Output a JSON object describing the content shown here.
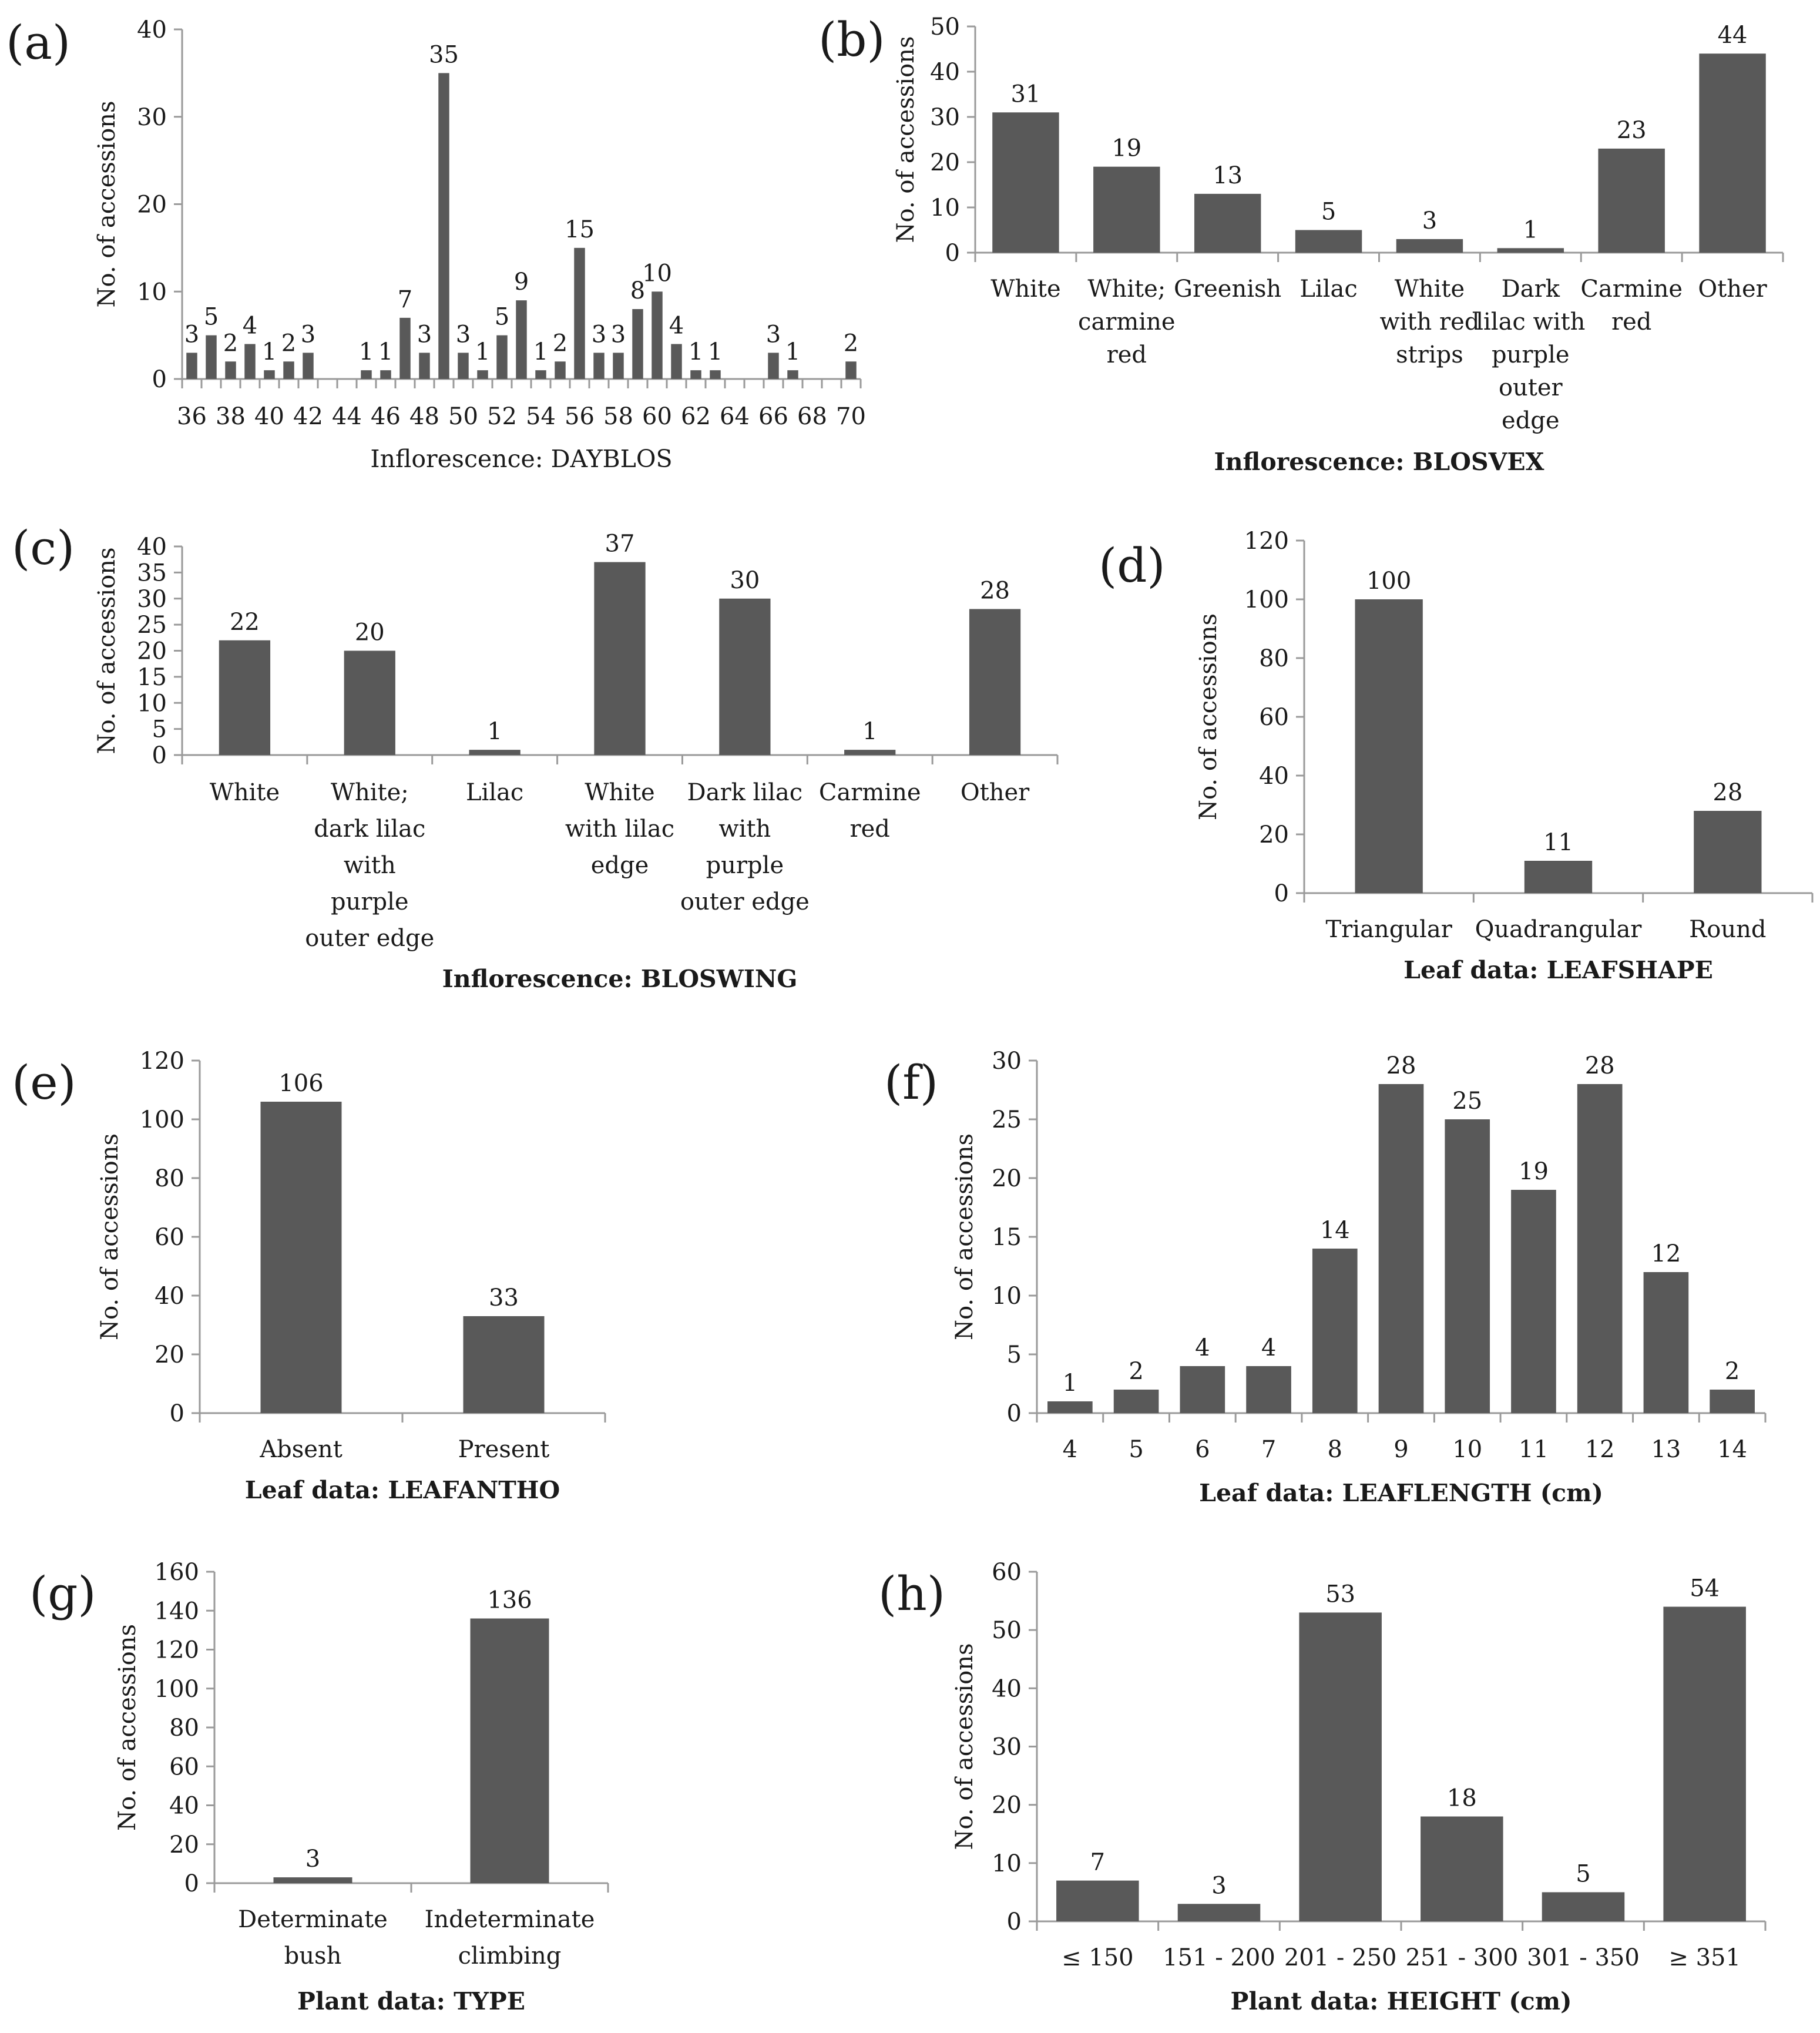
{
  "style": {
    "bar_color": "#595959",
    "axis_color": "#9a9a9a",
    "text_color": "#1a1a1a"
  },
  "chart_data": [
    {
      "id": "a",
      "panel_label": "(a)",
      "type": "bar",
      "title": "",
      "xlabel": "Inflorescence: DAYBLOS",
      "xlabel_bold": false,
      "ylabel": "No. of accessions",
      "ylim": [
        0,
        40
      ],
      "yticks": [
        0,
        10,
        20,
        30,
        40
      ],
      "categories": [
        "36",
        "37",
        "38",
        "39",
        "40",
        "41",
        "42",
        "43",
        "44",
        "45",
        "46",
        "47",
        "48",
        "49",
        "50",
        "51",
        "52",
        "53",
        "54",
        "55",
        "56",
        "57",
        "58",
        "59",
        "60",
        "61",
        "62",
        "63",
        "64",
        "65",
        "66",
        "67",
        "68",
        "69",
        "70"
      ],
      "category_labels": [
        [
          "36"
        ],
        [
          ""
        ],
        [
          "38"
        ],
        [
          ""
        ],
        [
          "40"
        ],
        [
          ""
        ],
        [
          "42"
        ],
        [
          ""
        ],
        [
          "44"
        ],
        [
          ""
        ],
        [
          "46"
        ],
        [
          ""
        ],
        [
          "48"
        ],
        [
          ""
        ],
        [
          "50"
        ],
        [
          ""
        ],
        [
          "52"
        ],
        [
          ""
        ],
        [
          "54"
        ],
        [
          ""
        ],
        [
          "56"
        ],
        [
          ""
        ],
        [
          "58"
        ],
        [
          ""
        ],
        [
          "60"
        ],
        [
          ""
        ],
        [
          "62"
        ],
        [
          ""
        ],
        [
          "64"
        ],
        [
          ""
        ],
        [
          "66"
        ],
        [
          ""
        ],
        [
          "68"
        ],
        [
          ""
        ],
        [
          "70"
        ]
      ],
      "values": [
        3,
        5,
        2,
        4,
        1,
        2,
        3,
        null,
        null,
        1,
        1,
        7,
        3,
        35,
        3,
        1,
        5,
        9,
        1,
        2,
        15,
        3,
        3,
        8,
        10,
        4,
        1,
        1,
        null,
        null,
        3,
        1,
        null,
        null,
        2
      ],
      "grid": false
    },
    {
      "id": "b",
      "panel_label": "(b)",
      "type": "bar",
      "title": "",
      "xlabel": "Inflorescence: BLOSVEX",
      "xlabel_bold": true,
      "ylabel": "No. of accessions",
      "ylim": [
        0,
        50
      ],
      "yticks": [
        0,
        10,
        20,
        30,
        40,
        50
      ],
      "categories": [
        "White",
        "White; carmine red",
        "Greenish",
        "Lilac",
        "White with red strips",
        "Dark lilac with purple outer edge",
        "Carmine red",
        "Other"
      ],
      "category_labels": [
        [
          "White"
        ],
        [
          "White;",
          "carmine",
          "red"
        ],
        [
          "Greenish"
        ],
        [
          "Lilac"
        ],
        [
          "White",
          "with red",
          "strips"
        ],
        [
          "Dark",
          "lilac with",
          "purple",
          "outer",
          "edge"
        ],
        [
          "Carmine",
          "red"
        ],
        [
          "Other"
        ]
      ],
      "values": [
        31,
        19,
        13,
        5,
        3,
        1,
        23,
        44
      ],
      "grid": false
    },
    {
      "id": "c",
      "panel_label": "(c)",
      "type": "bar",
      "title": "",
      "xlabel": "Inflorescence: BLOSWING",
      "xlabel_bold": true,
      "ylabel": "No. of accessions",
      "ylim": [
        0,
        40
      ],
      "yticks": [
        0,
        5,
        10,
        15,
        20,
        25,
        30,
        35,
        40
      ],
      "categories": [
        "White",
        "White; dark lilac with purple outer edge",
        "Lilac",
        "White with lilac edge",
        "Dark lilac with purple outer edge",
        "Carmine red",
        "Other"
      ],
      "category_labels": [
        [
          "White"
        ],
        [
          "White;",
          "dark lilac",
          "with",
          "purple",
          "outer edge"
        ],
        [
          "Lilac"
        ],
        [
          "White",
          "with lilac",
          "edge"
        ],
        [
          "Dark lilac",
          "with",
          "purple",
          "outer edge"
        ],
        [
          "Carmine",
          "red"
        ],
        [
          "Other"
        ]
      ],
      "values": [
        22,
        20,
        1,
        37,
        30,
        1,
        28
      ],
      "grid": false
    },
    {
      "id": "d",
      "panel_label": "(d)",
      "type": "bar",
      "title": "",
      "xlabel": "Leaf data: LEAFSHAPE",
      "xlabel_bold": true,
      "ylabel": "No. of accessions",
      "ylim": [
        0,
        120
      ],
      "yticks": [
        0,
        20,
        40,
        60,
        80,
        100,
        120
      ],
      "categories": [
        "Triangular",
        "Quadrangular",
        "Round"
      ],
      "category_labels": [
        [
          "Triangular"
        ],
        [
          "Quadrangular"
        ],
        [
          "Round"
        ]
      ],
      "values": [
        100,
        11,
        28
      ],
      "grid": false
    },
    {
      "id": "e",
      "panel_label": "(e)",
      "type": "bar",
      "title": "",
      "xlabel": "Leaf data: LEAFANTHO",
      "xlabel_bold": true,
      "ylabel": "No. of accessions",
      "ylim": [
        0,
        120
      ],
      "yticks": [
        0,
        20,
        40,
        60,
        80,
        100,
        120
      ],
      "categories": [
        "Absent",
        "Present"
      ],
      "category_labels": [
        [
          "Absent"
        ],
        [
          "Present"
        ]
      ],
      "values": [
        106,
        33
      ],
      "grid": false
    },
    {
      "id": "f",
      "panel_label": "(f)",
      "type": "bar",
      "title": "",
      "xlabel": "Leaf data: LEAFLENGTH (cm)",
      "xlabel_bold": true,
      "ylabel": "No. of accessions",
      "ylim": [
        0,
        30
      ],
      "yticks": [
        0,
        5,
        10,
        15,
        20,
        25,
        30
      ],
      "categories": [
        "4",
        "5",
        "6",
        "7",
        "8",
        "9",
        "10",
        "11",
        "12",
        "13",
        "14"
      ],
      "category_labels": [
        [
          "4"
        ],
        [
          "5"
        ],
        [
          "6"
        ],
        [
          "7"
        ],
        [
          "8"
        ],
        [
          "9"
        ],
        [
          "10"
        ],
        [
          "11"
        ],
        [
          "12"
        ],
        [
          "13"
        ],
        [
          "14"
        ]
      ],
      "values": [
        1,
        2,
        4,
        4,
        14,
        28,
        25,
        19,
        28,
        12,
        2
      ],
      "grid": false
    },
    {
      "id": "g",
      "panel_label": "(g)",
      "type": "bar",
      "title": "",
      "xlabel": "Plant data: TYPE",
      "xlabel_bold": true,
      "ylabel": "No. of accessions",
      "ylim": [
        0,
        160
      ],
      "yticks": [
        0,
        20,
        40,
        60,
        80,
        100,
        120,
        140,
        160
      ],
      "categories": [
        "Determinate bush",
        "Indeterminate climbing"
      ],
      "category_labels": [
        [
          "Determinate",
          "bush"
        ],
        [
          "Indeterminate",
          "climbing"
        ]
      ],
      "values": [
        3,
        136
      ],
      "grid": false
    },
    {
      "id": "h",
      "panel_label": "(h)",
      "type": "bar",
      "title": "",
      "xlabel": "Plant data: HEIGHT (cm)",
      "xlabel_bold": true,
      "ylabel": "No. of accessions",
      "ylim": [
        0,
        60
      ],
      "yticks": [
        0,
        10,
        20,
        30,
        40,
        50,
        60
      ],
      "categories": [
        "≤ 150",
        "151 - 200",
        "201 - 250",
        "251 - 300",
        "301 - 350",
        "≥ 351"
      ],
      "category_labels": [
        [
          "≤ 150"
        ],
        [
          "151 - 200"
        ],
        [
          "201 - 250"
        ],
        [
          "251 - 300"
        ],
        [
          "301 - 350"
        ],
        [
          "≥ 351"
        ]
      ],
      "values": [
        7,
        3,
        53,
        18,
        5,
        54
      ],
      "grid": false
    }
  ]
}
